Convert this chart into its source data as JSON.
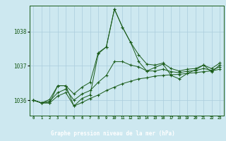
{
  "title": "Graphe pression niveau de la mer (hPa)",
  "bg_color": "#cde8f0",
  "label_bg_color": "#2d6e2d",
  "label_text_color": "#ffffff",
  "grid_color": "#aaccdd",
  "line_color": "#1a5c1a",
  "x_labels": [
    "0",
    "1",
    "2",
    "3",
    "4",
    "5",
    "6",
    "7",
    "8",
    "9",
    "10",
    "11",
    "12",
    "13",
    "14",
    "15",
    "16",
    "17",
    "18",
    "19",
    "20",
    "21",
    "22",
    "23"
  ],
  "y_ticks": [
    1036,
    1037,
    1038
  ],
  "ylim": [
    1035.55,
    1038.75
  ],
  "xlim": [
    -0.5,
    23.5
  ],
  "series_main": [
    1036.0,
    1035.92,
    1035.92,
    1036.42,
    1036.42,
    1035.83,
    1036.05,
    1036.15,
    1037.35,
    1037.55,
    1038.65,
    1038.12,
    1037.68,
    1037.12,
    1036.85,
    1036.95,
    1037.05,
    1036.72,
    1036.62,
    1036.78,
    1036.88,
    1037.02,
    1036.82,
    1037.02
  ],
  "series_min": [
    1036.0,
    1035.92,
    1035.92,
    1036.12,
    1036.22,
    1035.83,
    1035.93,
    1036.05,
    1036.15,
    1036.28,
    1036.38,
    1036.48,
    1036.55,
    1036.62,
    1036.65,
    1036.7,
    1036.72,
    1036.74,
    1036.75,
    1036.78,
    1036.8,
    1036.83,
    1036.85,
    1036.9
  ],
  "series_max": [
    1036.0,
    1035.92,
    1036.02,
    1036.42,
    1036.42,
    1036.18,
    1036.38,
    1036.52,
    1037.38,
    1037.55,
    1038.65,
    1038.12,
    1037.68,
    1037.32,
    1037.05,
    1037.02,
    1037.08,
    1036.92,
    1036.85,
    1036.9,
    1036.92,
    1037.02,
    1036.92,
    1037.08
  ],
  "series_avg": [
    1036.0,
    1035.92,
    1035.97,
    1036.22,
    1036.32,
    1036.0,
    1036.18,
    1036.28,
    1036.52,
    1036.72,
    1037.12,
    1037.12,
    1037.02,
    1036.97,
    1036.85,
    1036.85,
    1036.9,
    1036.83,
    1036.8,
    1036.84,
    1036.86,
    1036.92,
    1036.87,
    1036.97
  ]
}
